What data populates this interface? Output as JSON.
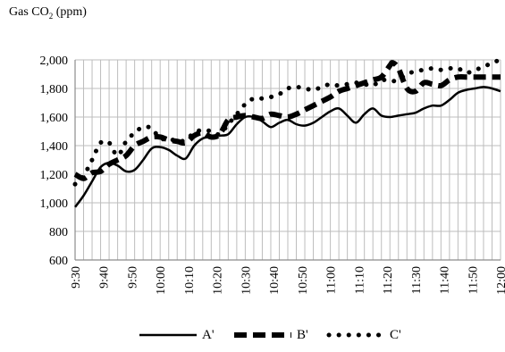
{
  "chart_data": {
    "type": "line",
    "ylabel_main": "Gas CO",
    "ylabel_sub": "2",
    "ylabel_unit": " (ppm)",
    "xlabel": "",
    "ylim": [
      600,
      2000
    ],
    "yticks": [
      "600",
      "800",
      "1,000",
      "1,200",
      "1,400",
      "1,600",
      "1,800",
      "2,000"
    ],
    "ytick_values": [
      600,
      800,
      1000,
      1200,
      1400,
      1600,
      1800,
      2000
    ],
    "xlim": [
      0,
      150
    ],
    "xticks": [
      "9:30",
      "9:40",
      "9:50",
      "10:00",
      "10:10",
      "10:20",
      "10:30",
      "10:40",
      "10:50",
      "11:00",
      "11:10",
      "11:20",
      "11:30",
      "11:40",
      "11:50",
      "12:00"
    ],
    "xtick_values": [
      0,
      10,
      20,
      30,
      40,
      50,
      60,
      70,
      80,
      90,
      100,
      110,
      120,
      130,
      140,
      150
    ],
    "grid": true,
    "legend": "bottom",
    "series": [
      {
        "name": "A'",
        "style": "solid",
        "color": "#000000",
        "x": [
          0,
          3,
          6,
          9,
          12,
          15,
          18,
          21,
          24,
          27,
          30,
          33,
          36,
          39,
          42,
          45,
          48,
          51,
          54,
          57,
          60,
          63,
          66,
          69,
          72,
          75,
          78,
          81,
          84,
          87,
          90,
          93,
          96,
          99,
          102,
          105,
          108,
          111,
          114,
          117,
          120,
          123,
          126,
          129,
          132,
          135,
          138,
          141,
          144,
          147,
          150
        ],
        "y": [
          970,
          1050,
          1150,
          1250,
          1280,
          1260,
          1220,
          1230,
          1300,
          1380,
          1390,
          1370,
          1330,
          1310,
          1400,
          1450,
          1460,
          1470,
          1480,
          1550,
          1600,
          1600,
          1570,
          1530,
          1560,
          1580,
          1550,
          1540,
          1560,
          1600,
          1640,
          1660,
          1610,
          1560,
          1620,
          1660,
          1610,
          1600,
          1610,
          1620,
          1630,
          1660,
          1680,
          1680,
          1720,
          1770,
          1790,
          1800,
          1810,
          1800,
          1780
        ]
      },
      {
        "name": "B'",
        "style": "dashed",
        "color": "#000000",
        "x": [
          0,
          3,
          6,
          9,
          12,
          15,
          18,
          21,
          24,
          27,
          30,
          33,
          36,
          39,
          42,
          45,
          48,
          51,
          54,
          57,
          60,
          63,
          66,
          69,
          72,
          75,
          78,
          81,
          84,
          87,
          90,
          93,
          96,
          99,
          102,
          105,
          108,
          111,
          112,
          114,
          117,
          120,
          123,
          126,
          129,
          132,
          135,
          138,
          141,
          144,
          147,
          150
        ],
        "y": [
          1200,
          1170,
          1210,
          1220,
          1270,
          1300,
          1330,
          1400,
          1430,
          1460,
          1460,
          1440,
          1430,
          1420,
          1470,
          1490,
          1460,
          1480,
          1580,
          1600,
          1610,
          1600,
          1590,
          1620,
          1610,
          1600,
          1620,
          1650,
          1680,
          1710,
          1740,
          1780,
          1800,
          1820,
          1840,
          1860,
          1880,
          1960,
          1980,
          1940,
          1800,
          1780,
          1840,
          1830,
          1820,
          1860,
          1880,
          1880,
          1880,
          1880,
          1880,
          1880
        ]
      },
      {
        "name": "C'",
        "style": "dotted",
        "color": "#000000",
        "x": [
          0,
          3,
          6,
          9,
          12,
          15,
          18,
          21,
          24,
          27,
          30,
          33,
          36,
          39,
          42,
          45,
          48,
          51,
          54,
          57,
          60,
          63,
          66,
          69,
          72,
          75,
          78,
          81,
          84,
          87,
          90,
          93,
          96,
          99,
          102,
          105,
          108,
          111,
          114,
          117,
          120,
          123,
          126,
          129,
          132,
          135,
          138,
          141,
          144,
          147,
          150
        ],
        "y": [
          1130,
          1190,
          1300,
          1420,
          1420,
          1330,
          1430,
          1490,
          1530,
          1520,
          1450,
          1450,
          1430,
          1440,
          1490,
          1510,
          1500,
          1480,
          1550,
          1620,
          1690,
          1730,
          1730,
          1740,
          1760,
          1800,
          1810,
          1800,
          1790,
          1810,
          1830,
          1820,
          1830,
          1840,
          1830,
          1820,
          1860,
          1850,
          1860,
          1900,
          1920,
          1930,
          1940,
          1930,
          1940,
          1940,
          1910,
          1930,
          1950,
          1980,
          2000
        ]
      }
    ]
  }
}
